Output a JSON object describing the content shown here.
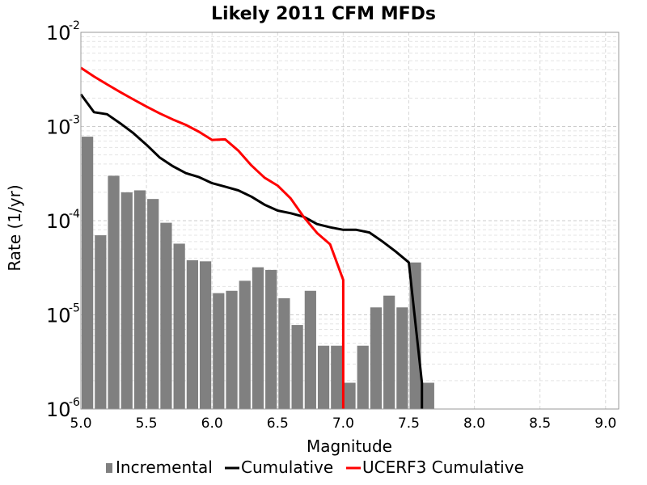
{
  "chart_data": {
    "type": "bar",
    "title": "Likely 2011 CFM MFDs",
    "xlabel": "Magnitude",
    "ylabel": "Rate (1/yr)",
    "xlim": [
      5.0,
      9.1
    ],
    "ylim": [
      1e-06,
      0.01
    ],
    "yscale": "log",
    "grid": true,
    "legend_position": "bottom",
    "x_ticks": [
      "5.0",
      "5.5",
      "6.0",
      "6.5",
      "7.0",
      "7.5",
      "8.0",
      "8.5",
      "9.0"
    ],
    "x_tick_values": [
      5.0,
      5.5,
      6.0,
      6.5,
      7.0,
      7.5,
      8.0,
      8.5,
      9.0
    ],
    "y_ticks": [
      {
        "base": "10",
        "exp": "-2",
        "value": 0.01
      },
      {
        "base": "10",
        "exp": "-3",
        "value": 0.001
      },
      {
        "base": "10",
        "exp": "-4",
        "value": 0.0001
      },
      {
        "base": "10",
        "exp": "-5",
        "value": 1e-05
      },
      {
        "base": "10",
        "exp": "-6",
        "value": 1e-06
      }
    ],
    "series": [
      {
        "name": "Incremental",
        "kind": "bar",
        "color": "#808080",
        "x": [
          5.05,
          5.15,
          5.25,
          5.35,
          5.45,
          5.55,
          5.65,
          5.75,
          5.85,
          5.95,
          6.05,
          6.15,
          6.25,
          6.35,
          6.45,
          6.55,
          6.65,
          6.75,
          6.85,
          6.95,
          7.05,
          7.15,
          7.25,
          7.35,
          7.45,
          7.55,
          7.65
        ],
        "y": [
          0.00078,
          7e-05,
          0.0003,
          0.0002,
          0.00021,
          0.00017,
          9.5e-05,
          5.7e-05,
          3.8e-05,
          3.7e-05,
          1.7e-05,
          1.8e-05,
          2.3e-05,
          3.2e-05,
          3e-05,
          1.5e-05,
          7.8e-06,
          1.8e-05,
          4.7e-06,
          4.7e-06,
          1.9e-06,
          4.7e-06,
          1.2e-05,
          1.6e-05,
          1.2e-05,
          3.6e-05,
          1.9e-06
        ]
      },
      {
        "name": "Cumulative",
        "kind": "line",
        "color": "#000000",
        "x": [
          5.0,
          5.1,
          5.2,
          5.3,
          5.4,
          5.5,
          5.6,
          5.7,
          5.8,
          5.9,
          6.0,
          6.1,
          6.2,
          6.3,
          6.4,
          6.5,
          6.6,
          6.7,
          6.8,
          6.9,
          7.0,
          7.1,
          7.2,
          7.3,
          7.4,
          7.5,
          7.6,
          7.6
        ],
        "y": [
          0.0022,
          0.00142,
          0.00135,
          0.00108,
          0.00085,
          0.00064,
          0.00047,
          0.00038,
          0.00032,
          0.00029,
          0.00025,
          0.00023,
          0.00021,
          0.00018,
          0.000148,
          0.000128,
          0.00012,
          0.00011,
          9.2e-05,
          8.5e-05,
          8e-05,
          8e-05,
          7.5e-05,
          6e-05,
          4.7e-05,
          3.6e-05,
          1.9e-06,
          1e-06
        ]
      },
      {
        "name": "UCERF3 Cumulative",
        "kind": "line",
        "color": "#ff0000",
        "x": [
          5.0,
          5.1,
          5.2,
          5.3,
          5.4,
          5.5,
          5.6,
          5.7,
          5.8,
          5.9,
          6.0,
          6.1,
          6.2,
          6.3,
          6.4,
          6.5,
          6.6,
          6.7,
          6.8,
          6.9,
          7.0,
          7.0
        ],
        "y": [
          0.0042,
          0.0034,
          0.0028,
          0.00232,
          0.00194,
          0.00163,
          0.00138,
          0.00119,
          0.00104,
          0.00088,
          0.00072,
          0.00073,
          0.000555,
          0.000386,
          0.000286,
          0.000236,
          0.000172,
          0.000109,
          7.4e-05,
          5.6e-05,
          2.35e-05,
          1e-06
        ]
      }
    ]
  }
}
